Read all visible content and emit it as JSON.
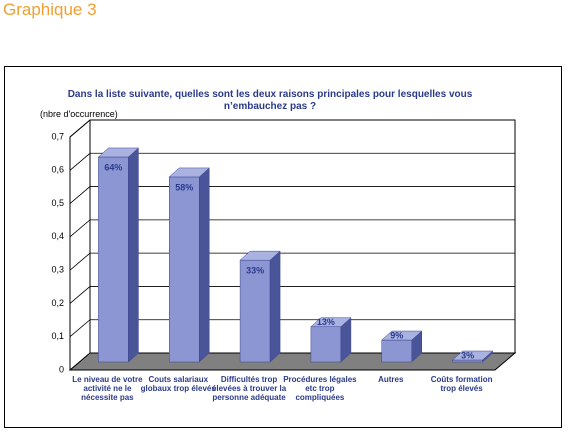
{
  "header": {
    "title": "Graphique 3"
  },
  "chart_data": {
    "type": "bar3d",
    "title": "Dans la liste suivante, quelles sont les deux raisons principales pour lesquelles vous n’embauchez pas ?",
    "y_label": "(nbre d'occurrence)",
    "categories": [
      "Le niveau de votre activité ne le nécessite pas",
      "Couts salariaux globaux trop élevés",
      "Difficultés trop élevées à trouver la personne adéquate",
      "Procédures légales etc trop compliquées",
      "Autres",
      "Coûts formation trop élevés"
    ],
    "values": [
      0.64,
      0.58,
      0.33,
      0.13,
      0.09,
      0.03
    ],
    "value_labels": [
      "64%",
      "58%",
      "33%",
      "13%",
      "9%",
      "3%"
    ],
    "color": "#8c96d2",
    "ylim": [
      0,
      0.7
    ],
    "yticks": [
      0,
      {
        "value": 0.1,
        "label": "0,1"
      },
      {
        "value": 0.2,
        "label": "0,2"
      },
      {
        "value": 0.3,
        "label": "0,3"
      },
      {
        "value": 0.4,
        "label": "0,4"
      },
      {
        "value": 0.5,
        "label": "0,5"
      },
      {
        "value": 0.6,
        "label": "0,6"
      },
      {
        "value": 0.7,
        "label": "0,7"
      }
    ],
    "grid": true
  }
}
